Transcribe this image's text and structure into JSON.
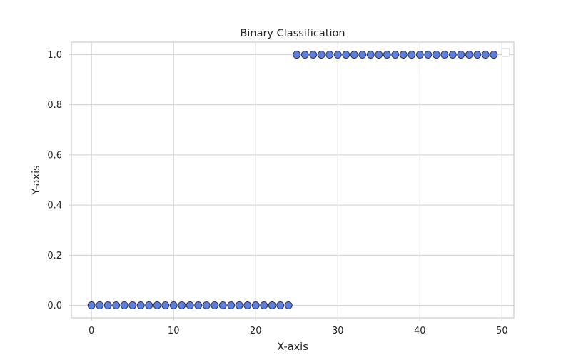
{
  "chart_data": {
    "type": "scatter",
    "title": "Binary Classification",
    "xlabel": "X-axis",
    "ylabel": "Y-axis",
    "xlim": [
      -2.45,
      51.45
    ],
    "ylim": [
      -0.05,
      1.05
    ],
    "xticks": [
      0,
      10,
      20,
      30,
      40,
      50
    ],
    "yticks": [
      0.0,
      0.2,
      0.4,
      0.6,
      0.8,
      1.0
    ],
    "xtick_labels": [
      "0",
      "10",
      "20",
      "30",
      "40",
      "50"
    ],
    "ytick_labels": [
      "0.0",
      "0.2",
      "0.4",
      "0.6",
      "0.8",
      "1.0"
    ],
    "grid": true,
    "legend": {
      "placement": "top-right",
      "entries": []
    },
    "marker_color": "#5b7fe0",
    "marker_edge_color": "#2b2b44",
    "series": [
      {
        "x": [
          0,
          1,
          2,
          3,
          4,
          5,
          6,
          7,
          8,
          9,
          10,
          11,
          12,
          13,
          14,
          15,
          16,
          17,
          18,
          19,
          20,
          21,
          22,
          23,
          24,
          25,
          26,
          27,
          28,
          29,
          30,
          31,
          32,
          33,
          34,
          35,
          36,
          37,
          38,
          39,
          40,
          41,
          42,
          43,
          44,
          45,
          46,
          47,
          48,
          49
        ],
        "y": [
          0,
          0,
          0,
          0,
          0,
          0,
          0,
          0,
          0,
          0,
          0,
          0,
          0,
          0,
          0,
          0,
          0,
          0,
          0,
          0,
          0,
          0,
          0,
          0,
          0,
          1,
          1,
          1,
          1,
          1,
          1,
          1,
          1,
          1,
          1,
          1,
          1,
          1,
          1,
          1,
          1,
          1,
          1,
          1,
          1,
          1,
          1,
          1,
          1,
          1
        ]
      }
    ]
  }
}
